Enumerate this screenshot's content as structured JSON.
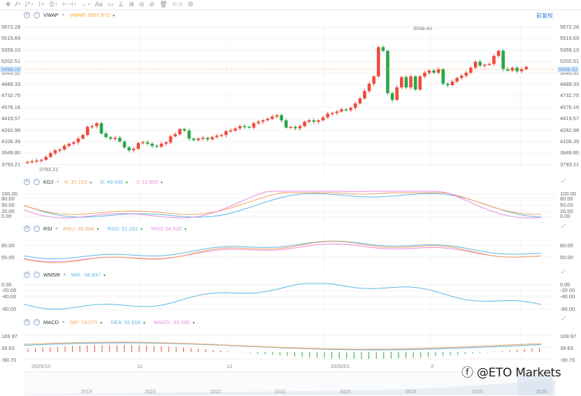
{
  "toolbar": {
    "items": [
      {
        "name": "crosshair-move",
        "glyph": "✥"
      },
      {
        "name": "trend-line",
        "glyph": "⁄⁄"
      },
      {
        "name": "channel",
        "glyph": "◸"
      },
      {
        "name": "polyline",
        "glyph": "⌇"
      },
      {
        "name": "fib",
        "glyph": "☰"
      },
      {
        "name": "measure",
        "glyph": "⊢⊣"
      },
      {
        "name": "arrow",
        "glyph": "←"
      },
      {
        "name": "text",
        "glyph": "Aa"
      },
      {
        "name": "note",
        "glyph": "▭"
      },
      {
        "name": "angle",
        "glyph": "∠"
      },
      {
        "name": "magnet",
        "glyph": "⋒"
      },
      {
        "name": "lock",
        "glyph": "⊖"
      },
      {
        "name": "hide",
        "glyph": "⊘"
      },
      {
        "name": "delete",
        "glyph": "🗑"
      },
      {
        "name": "link",
        "glyph": "⊂⊃"
      },
      {
        "name": "settings",
        "glyph": "⚙"
      }
    ]
  },
  "main": {
    "indicator": "VWAP",
    "vwap_label": "VWAP:",
    "vwap_value": "5097.872",
    "adjust_button": "前复权",
    "current_price": "5098.02",
    "high_label": "5598.88",
    "low_label": "3793.21",
    "y_ticks": [
      "5672.28",
      "5515.69",
      "5359.10",
      "5202.51",
      "5045.92",
      "4889.33",
      "4732.75",
      "4576.16",
      "4419.57",
      "4262.98",
      "4106.39",
      "3949.80",
      "3793.21"
    ]
  },
  "kdj": {
    "name": "KDJ",
    "k_label": "K:",
    "k_value": "37.123",
    "d_label": "D:",
    "d_value": "49.430",
    "j_label": "J:",
    "j_value": "12.509",
    "y_ticks": [
      "100.00",
      "80.00",
      "50.00",
      "20.00",
      "0.00"
    ]
  },
  "rsi": {
    "name": "RSI",
    "rsi1_label": "RSI1:",
    "rsi1_value": "45.904",
    "rsi2_label": "RSI2:",
    "rsi2_value": "51.161",
    "rsi3_label": "RSI3:",
    "rsi3_value": "54.532",
    "y_ticks": [
      "80.00",
      "50.00"
    ]
  },
  "wmsr": {
    "name": "WMSR",
    "wr_label": "WR:",
    "wr_value": "-56.837",
    "y_ticks": [
      "0.00",
      "-20.00",
      "-40.00",
      "-80.00"
    ]
  },
  "macd": {
    "name": "MACD",
    "dif_label": "DIF:",
    "dif_value": "74.071",
    "dea_label": "DEA:",
    "dea_value": "91.618",
    "macd_label": "MACD:",
    "macd_value": "-35.095",
    "y_ticks": [
      "169.97",
      "39.63",
      "-90.70"
    ]
  },
  "xaxis": {
    "labels": [
      "2025/10",
      "11",
      "12",
      "2026/01",
      "2"
    ]
  },
  "navigator": {
    "years": [
      "2019",
      "2020",
      "2021",
      "2022",
      "2023",
      "2024",
      "2025",
      "2026"
    ]
  },
  "watermark": "@ETO Markets",
  "colors": {
    "up": "#ef4b3c",
    "down": "#2aa84a",
    "k": "#f5a25d",
    "d": "#5bb8e6",
    "j": "#e98be0",
    "wr": "#5bb8e6",
    "accent": "#3b7ddd",
    "vwap": "#f5a623"
  },
  "chart_data": [
    {
      "type": "candlestick",
      "title": "VWAP",
      "ylim": [
        3793.21,
        5672.28
      ],
      "y_ticks": [
        5672.28,
        5515.69,
        5359.1,
        5202.51,
        5045.92,
        4889.33,
        4732.75,
        4576.16,
        4419.57,
        4262.98,
        4106.39,
        3949.8,
        3793.21
      ],
      "x_labels": [
        "2025/10",
        "11",
        "12",
        "2026/01",
        "2"
      ],
      "annotations": {
        "high": 5598.88,
        "low": 3793.21,
        "last": 5098.02
      },
      "close_approx": [
        3830,
        3840,
        3850,
        3860,
        3900,
        3950,
        3990,
        4000,
        4050,
        4080,
        4100,
        4150,
        4200,
        4310,
        4320,
        4360,
        4220,
        4170,
        4150,
        4160,
        4110,
        4030,
        3990,
        4010,
        4090,
        4100,
        4080,
        4050,
        4040,
        4080,
        4100,
        4180,
        4210,
        4280,
        4260,
        4150,
        4130,
        4150,
        4160,
        4140,
        4170,
        4190,
        4200,
        4250,
        4260,
        4290,
        4320,
        4310,
        4300,
        4360,
        4380,
        4400,
        4420,
        4450,
        4470,
        4400,
        4300,
        4310,
        4290,
        4320,
        4380,
        4400,
        4380,
        4400,
        4440,
        4490,
        4500,
        4520,
        4550,
        4540,
        4570,
        4630,
        4700,
        4800,
        4900,
        5000,
        5400,
        5350,
        4770,
        4680,
        4850,
        4990,
        4850,
        5000,
        4820,
        5000,
        5050,
        5080,
        5050,
        5100,
        4900,
        4880,
        4930,
        4980,
        5010,
        5050,
        5120,
        5200,
        5150,
        5160,
        5170,
        5280,
        5350,
        5100,
        5080,
        5120,
        5070,
        5100,
        5130
      ]
    },
    {
      "type": "line",
      "title": "KDJ",
      "ylim": [
        0,
        100
      ],
      "y_ticks": [
        100,
        80,
        50,
        20,
        0
      ],
      "series": [
        {
          "name": "K",
          "last": 37.123
        },
        {
          "name": "D",
          "last": 49.43
        },
        {
          "name": "J",
          "last": 12.509
        }
      ]
    },
    {
      "type": "line",
      "title": "RSI",
      "y_ticks": [
        80,
        50
      ],
      "series": [
        {
          "name": "RSI1",
          "last": 45.904
        },
        {
          "name": "RSI2",
          "last": 51.161
        },
        {
          "name": "RSI3",
          "last": 54.532
        }
      ]
    },
    {
      "type": "line",
      "title": "WMSR",
      "ylim": [
        -100,
        0
      ],
      "y_ticks": [
        0,
        -20,
        -40,
        -80
      ],
      "series": [
        {
          "name": "WR",
          "last": -56.837
        }
      ]
    },
    {
      "type": "bar+line",
      "title": "MACD",
      "ylim": [
        -90.7,
        169.97
      ],
      "y_ticks": [
        169.97,
        39.63,
        -90.7
      ],
      "series": [
        {
          "name": "DIF",
          "last": 74.071
        },
        {
          "name": "DEA",
          "last": 91.618
        },
        {
          "name": "MACD",
          "last": -35.095
        }
      ]
    }
  ]
}
